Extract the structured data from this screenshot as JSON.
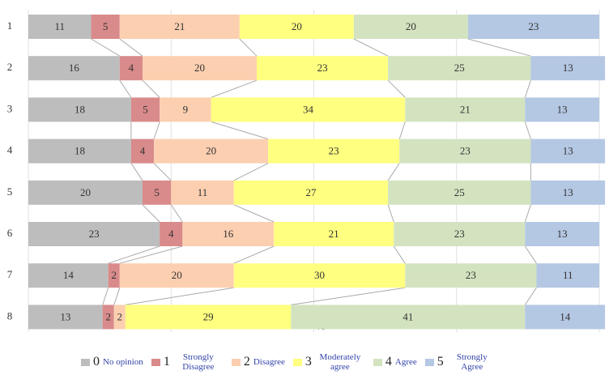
{
  "chart_data": {
    "type": "stacked-bar-horizontal",
    "categories": [
      "1",
      "2",
      "3",
      "4",
      "5",
      "6",
      "7",
      "8"
    ],
    "xlabel": "%",
    "xlim": [
      0,
      100
    ],
    "xticks": [
      0,
      25,
      50,
      75,
      100
    ],
    "grid": true,
    "series": [
      {
        "code": "0",
        "name": "No opinion",
        "color": "#bdbdbd",
        "values": [
          11,
          16,
          18,
          18,
          20,
          23,
          14,
          13
        ]
      },
      {
        "code": "1",
        "name": "Strongly Disagree",
        "color": "#d98a8a",
        "values": [
          5,
          4,
          5,
          4,
          5,
          4,
          2,
          2
        ]
      },
      {
        "code": "2",
        "name": "Disagree",
        "color": "#fbcfb0",
        "values": [
          21,
          20,
          9,
          20,
          11,
          16,
          20,
          2
        ]
      },
      {
        "code": "3",
        "name": "Moderately agree",
        "color": "#ffff80",
        "values": [
          20,
          23,
          34,
          23,
          27,
          21,
          30,
          29
        ]
      },
      {
        "code": "4",
        "name": "Agree",
        "color": "#d3e3c0",
        "values": [
          20,
          25,
          21,
          23,
          25,
          23,
          23,
          41
        ]
      },
      {
        "code": "5",
        "name": "Strongly Agree",
        "color": "#b4c7e3",
        "values": [
          23,
          13,
          13,
          13,
          13,
          13,
          11,
          14
        ]
      }
    ]
  }
}
